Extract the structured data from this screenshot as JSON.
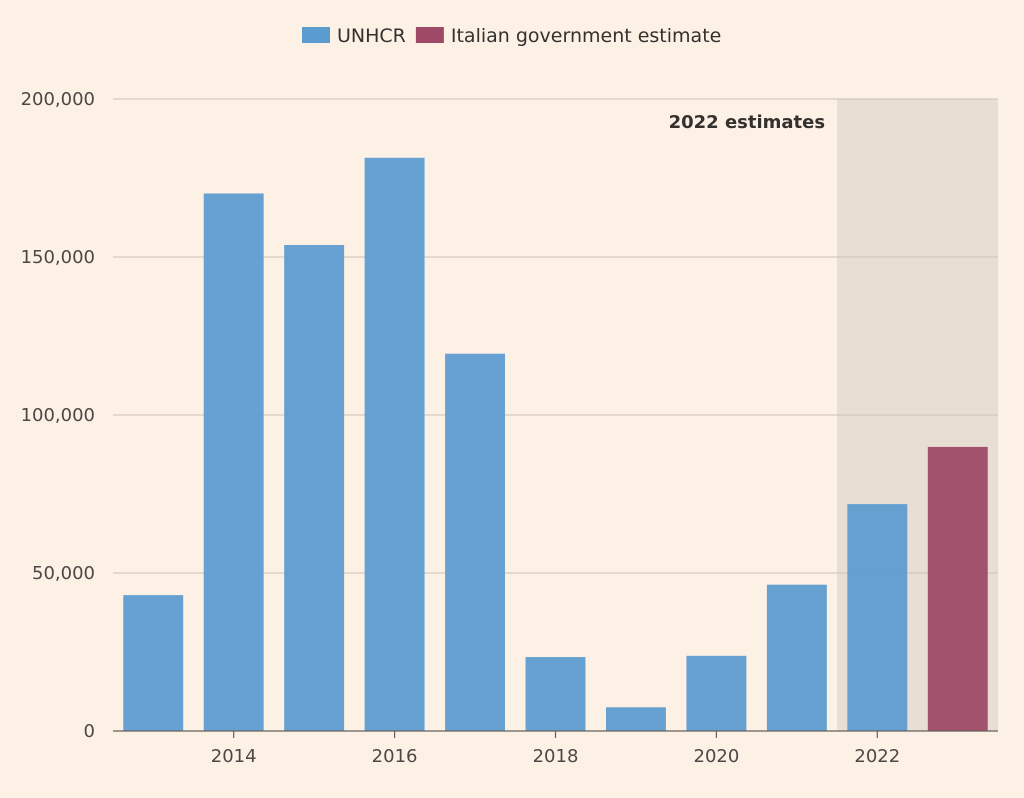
{
  "chart_data": {
    "type": "bar",
    "title": "",
    "xlabel": "",
    "ylabel": "",
    "x": [
      2013,
      2014,
      2015,
      2016,
      2017,
      2018,
      2019,
      2020,
      2021,
      2022,
      2023
    ],
    "x_tick_labels": [
      "2014",
      "2016",
      "2018",
      "2020",
      "2022"
    ],
    "y_tick_labels": [
      "0",
      "50,000",
      "100,000",
      "150,000",
      "200,000"
    ],
    "ylim": [
      0,
      200000
    ],
    "grid": true,
    "legend_position": "top-center",
    "series": [
      {
        "name": "UNHCR",
        "color": "#5a9bd0",
        "points": [
          {
            "x": 2013,
            "y": 43000
          },
          {
            "x": 2014,
            "y": 170100
          },
          {
            "x": 2015,
            "y": 153800
          },
          {
            "x": 2016,
            "y": 181400
          },
          {
            "x": 2017,
            "y": 119400
          },
          {
            "x": 2018,
            "y": 23400
          },
          {
            "x": 2019,
            "y": 7500
          },
          {
            "x": 2020,
            "y": 23800
          },
          {
            "x": 2021,
            "y": 46300
          },
          {
            "x": 2022,
            "y": 71800
          }
        ]
      },
      {
        "name": "Italian government estimate",
        "color": "#9e4a66",
        "points": [
          {
            "x": 2023,
            "y": 89900
          }
        ]
      }
    ],
    "annotations": [
      {
        "text": "2022 estimates",
        "shaded_from": 2022,
        "shaded_to": 2023
      }
    ],
    "shade_color": "#e9ded3"
  }
}
